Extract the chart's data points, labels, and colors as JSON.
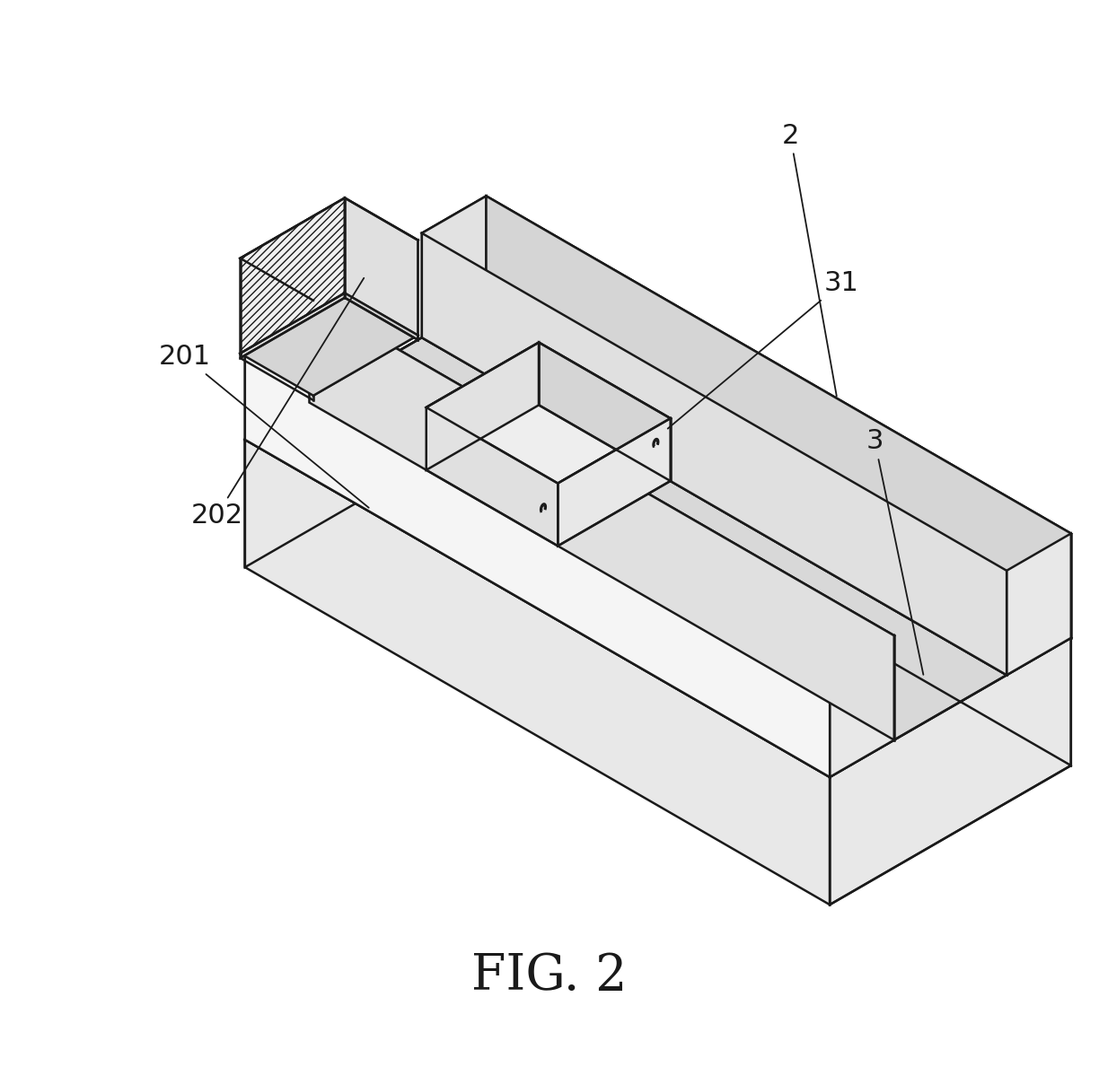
{
  "bg_color": "#ffffff",
  "line_color": "#1a1a1a",
  "lw": 1.8,
  "title": "FIG. 2",
  "title_fontsize": 40,
  "fig_label_fontsize": 22,
  "iso_ox": 0.44,
  "iso_oy": 0.6,
  "iso_sx": 0.32,
  "iso_sy": 0.22,
  "iso_sz": 0.22,
  "colors": {
    "top_light": "#f5f5f5",
    "top_mid": "#eeeeee",
    "side_front": "#e2e2e2",
    "side_right": "#d5d5d5",
    "side_left": "#e8e8e8",
    "inner_floor": "#d8d8d8",
    "inner_wall": "#e0e0e0",
    "hatch_bg": "#f0f0f0"
  }
}
